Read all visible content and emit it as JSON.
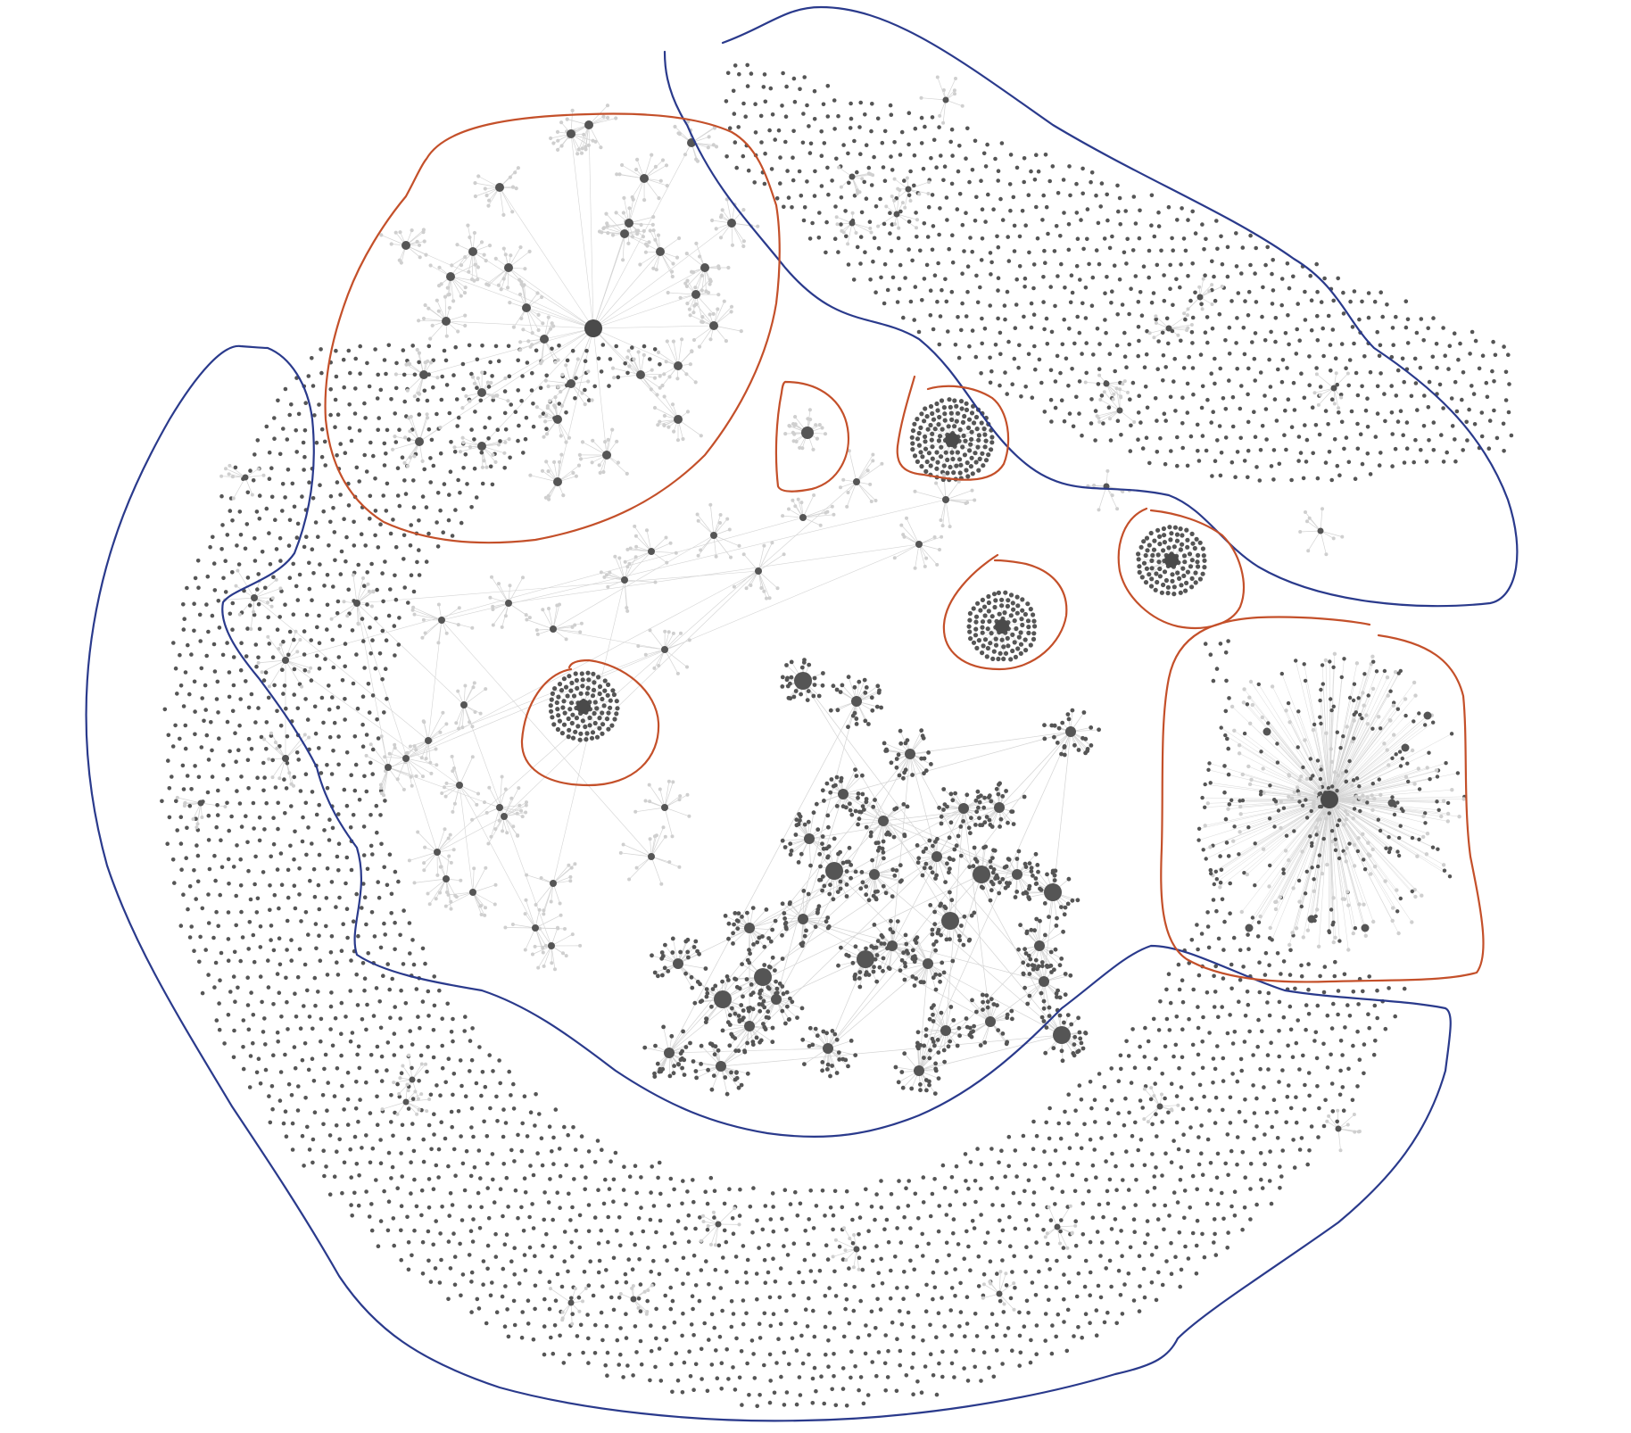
{
  "colors": {
    "background": "#ffffff",
    "edge": "#d4d4d4",
    "leaf_node": "#cfcfcf",
    "node": "#555555",
    "hub_node": "#4a4a4a",
    "outline_isolated": "#2a3a8c",
    "outline_cluster": "#c4502a"
  },
  "diagram": {
    "type": "network-graph",
    "annotations": [
      {
        "kind": "outline",
        "color": "blue",
        "encloses": "isolated-nodes"
      },
      {
        "kind": "outline",
        "color": "blue",
        "encloses": "isolated-nodes"
      },
      {
        "kind": "outline",
        "color": "blue",
        "encloses": "isolated-nodes"
      },
      {
        "kind": "outline",
        "color": "red",
        "encloses": "star-cluster"
      },
      {
        "kind": "outline",
        "color": "red",
        "encloses": "small-cluster"
      },
      {
        "kind": "outline",
        "color": "red",
        "encloses": "dense-cluster"
      },
      {
        "kind": "outline",
        "color": "red",
        "encloses": "dense-cluster"
      },
      {
        "kind": "outline",
        "color": "red",
        "encloses": "dense-cluster"
      },
      {
        "kind": "outline",
        "color": "red",
        "encloses": "dense-cluster"
      },
      {
        "kind": "outline",
        "color": "red",
        "encloses": "hairball-cluster"
      }
    ]
  }
}
